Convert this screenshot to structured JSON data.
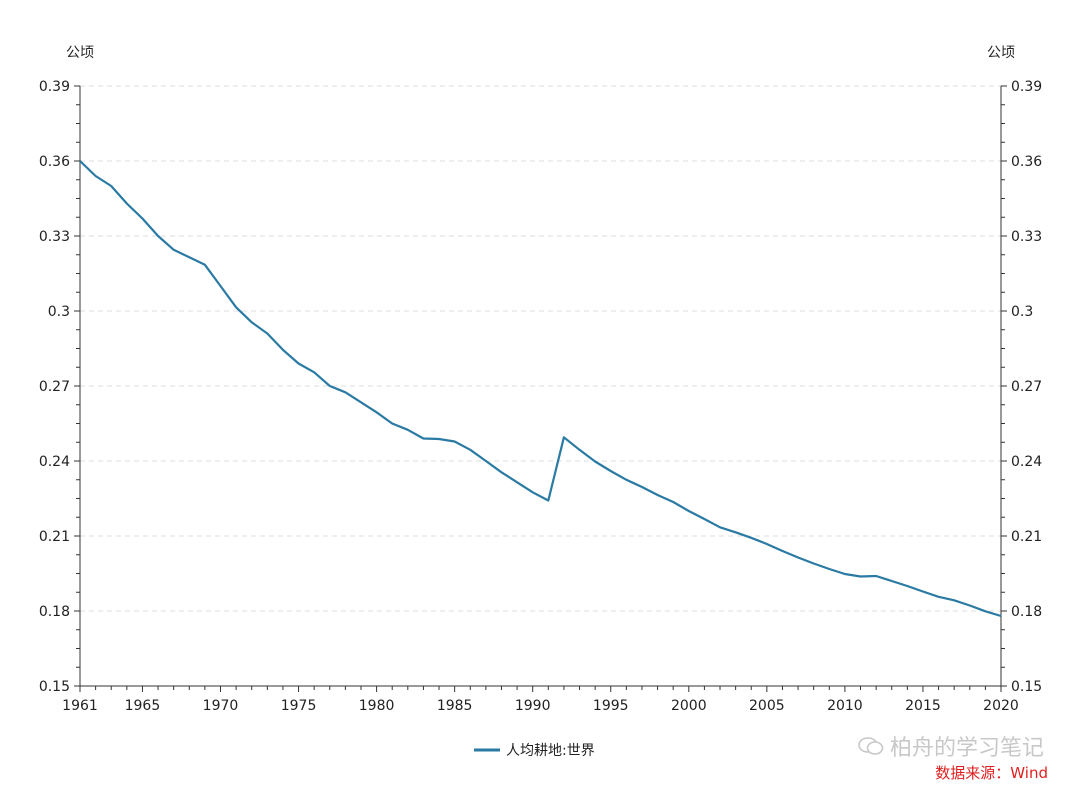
{
  "chart_data": {
    "type": "line",
    "title": "",
    "y_unit_left": "公顷",
    "y_unit_right": "公顷",
    "xlim": [
      1961,
      2020
    ],
    "ylim": [
      0.15,
      0.39
    ],
    "x_ticks": [
      1961,
      1965,
      1970,
      1975,
      1980,
      1985,
      1990,
      1995,
      2000,
      2005,
      2010,
      2015,
      2020
    ],
    "y_ticks": [
      0.15,
      0.18,
      0.21,
      0.24,
      0.27,
      0.3,
      0.33,
      0.36,
      0.39
    ],
    "y_tick_labels": [
      "0.15",
      "0.18",
      "0.21",
      "0.24",
      "0.27",
      "0.3",
      "0.33",
      "0.36",
      "0.39"
    ],
    "grid": "horizontal dashed",
    "legend_position": "bottom-center",
    "series": [
      {
        "name": "人均耕地:世界",
        "color": "#2a7aa3",
        "x": [
          1961,
          1962,
          1963,
          1964,
          1965,
          1966,
          1967,
          1968,
          1969,
          1970,
          1971,
          1972,
          1973,
          1974,
          1975,
          1976,
          1977,
          1978,
          1979,
          1980,
          1981,
          1982,
          1983,
          1984,
          1985,
          1986,
          1987,
          1988,
          1989,
          1990,
          1991,
          1992,
          1993,
          1994,
          1995,
          1996,
          1997,
          1998,
          1999,
          2000,
          2001,
          2002,
          2003,
          2004,
          2005,
          2006,
          2007,
          2008,
          2009,
          2010,
          2011,
          2012,
          2013,
          2014,
          2015,
          2016,
          2017,
          2018,
          2019,
          2020
        ],
        "values": [
          0.36,
          0.354,
          0.35,
          0.343,
          0.337,
          0.33,
          0.3245,
          0.3215,
          0.3185,
          0.31,
          0.3015,
          0.2955,
          0.291,
          0.2845,
          0.279,
          0.2755,
          0.27,
          0.2675,
          0.2635,
          0.2595,
          0.255,
          0.2525,
          0.249,
          0.2488,
          0.2478,
          0.2445,
          0.24,
          0.2355,
          0.2315,
          0.2275,
          0.2242,
          0.2495,
          0.2445,
          0.2398,
          0.236,
          0.2325,
          0.2296,
          0.2264,
          0.2236,
          0.22,
          0.2168,
          0.2135,
          0.2115,
          0.2093,
          0.2068,
          0.204,
          0.2014,
          0.199,
          0.1968,
          0.1948,
          0.1938,
          0.194,
          0.192,
          0.19,
          0.1878,
          0.1857,
          0.1843,
          0.1822,
          0.1799,
          0.178
        ]
      }
    ]
  },
  "source": "数据来源：Wind",
  "watermark": "柏舟的学习笔记"
}
